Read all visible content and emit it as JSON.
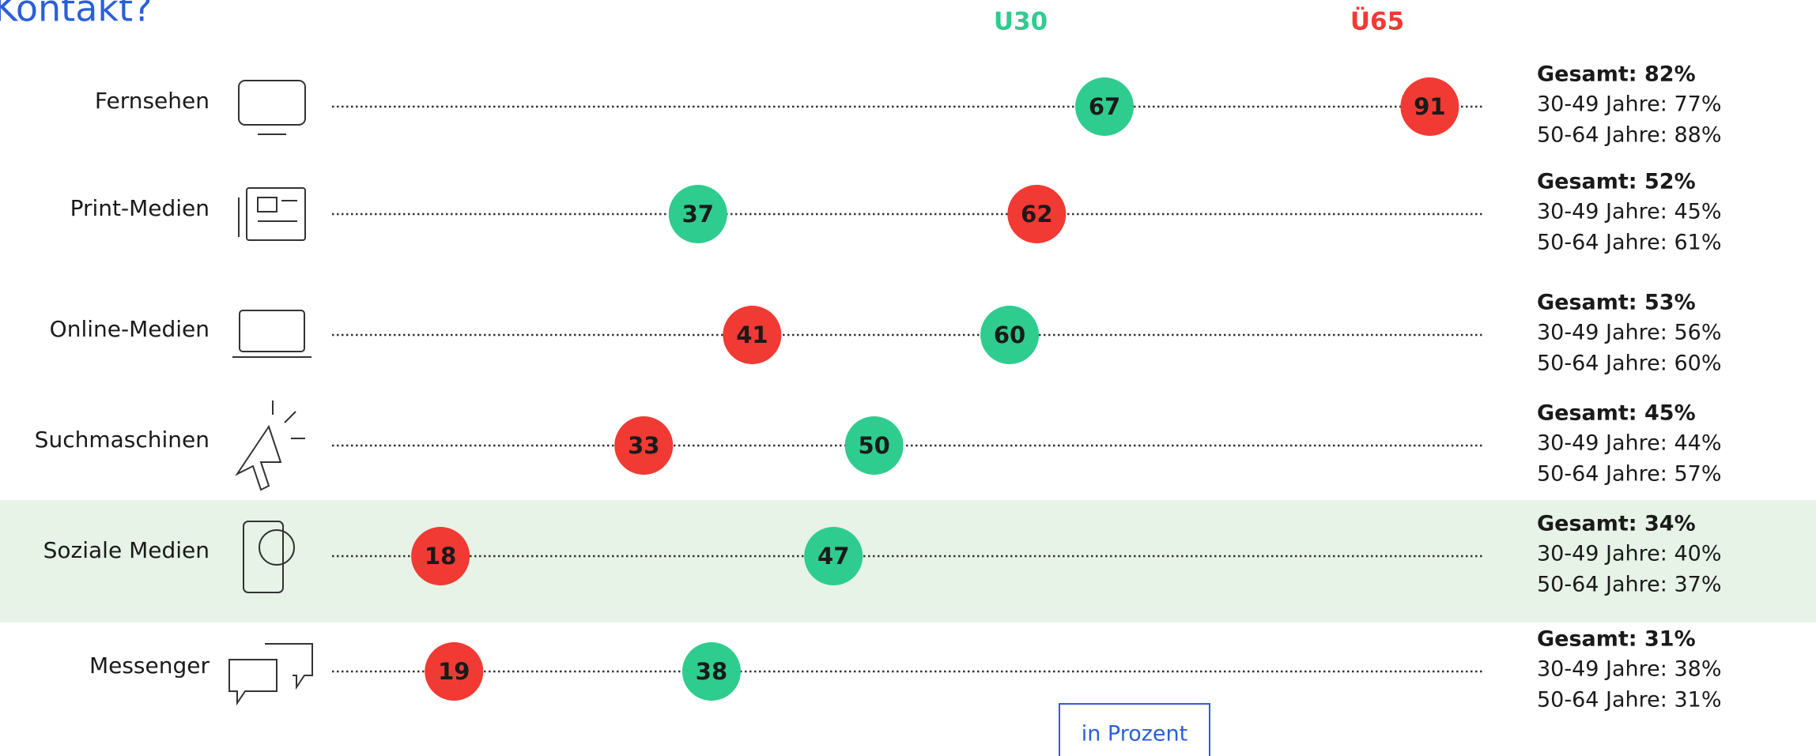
{
  "chart_data": {
    "type": "dot",
    "title": "Kontakt?",
    "unit_note": "in Prozent",
    "categories": [
      "Fernsehen",
      "Print-Medien",
      "Online-Medien",
      "Suchmaschinen",
      "Soziale Medien",
      "Messenger"
    ],
    "series": [
      {
        "name": "U30",
        "color": "#2ecc8f",
        "values": [
          67,
          37,
          60,
          50,
          47,
          38
        ]
      },
      {
        "name": "Ü65",
        "color": "#f03a33",
        "values": [
          91,
          62,
          41,
          33,
          18,
          19
        ]
      }
    ],
    "xlim": [
      10,
      95
    ],
    "summary": [
      [
        "Gesamt: 82%",
        "30-49 Jahre: 77%",
        "50-64 Jahre: 88%"
      ],
      [
        "Gesamt: 52%",
        "30-49 Jahre: 45%",
        "50-64 Jahre: 61%"
      ],
      [
        "Gesamt: 53%",
        "30-49 Jahre: 56%",
        "50-64 Jahre: 60%"
      ],
      [
        "Gesamt: 45%",
        "30-49 Jahre: 44%",
        "50-64 Jahre: 57%"
      ],
      [
        "Gesamt: 34%",
        "30-49 Jahre: 40%",
        "50-64 Jahre: 37%"
      ],
      [
        "Gesamt: 31%",
        "30-49 Jahre: 38%",
        "50-64 Jahre: 31%"
      ]
    ]
  }
}
